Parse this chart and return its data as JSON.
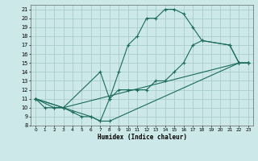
{
  "title": "",
  "xlabel": "Humidex (Indice chaleur)",
  "ylabel": "",
  "bg_color": "#cce8e8",
  "grid_color": "#aacccc",
  "line_color": "#1a6b5a",
  "xlim": [
    -0.5,
    23.5
  ],
  "ylim": [
    8,
    21.5
  ],
  "xticks": [
    0,
    1,
    2,
    3,
    4,
    5,
    6,
    7,
    8,
    9,
    10,
    11,
    12,
    13,
    14,
    15,
    16,
    17,
    18,
    19,
    20,
    21,
    22,
    23
  ],
  "yticks": [
    8,
    9,
    10,
    11,
    12,
    13,
    14,
    15,
    16,
    17,
    18,
    19,
    20,
    21
  ],
  "series": [
    {
      "x": [
        0,
        1,
        2,
        3,
        4,
        5,
        6,
        7,
        8,
        9,
        10,
        11,
        12,
        13,
        14,
        15,
        16,
        17,
        18,
        21,
        22,
        23
      ],
      "y": [
        11,
        10,
        10,
        10,
        9.5,
        9,
        9,
        8.5,
        11,
        14,
        17,
        18,
        20,
        20,
        21,
        21,
        20.5,
        19,
        17.5,
        17,
        15,
        15
      ]
    },
    {
      "x": [
        0,
        2,
        3,
        7,
        8,
        9,
        10,
        11,
        12,
        13,
        14,
        15,
        16,
        17,
        18,
        21,
        22,
        23
      ],
      "y": [
        11,
        10,
        10,
        14,
        11,
        12,
        12,
        12,
        12,
        13,
        13,
        14,
        15,
        17,
        17.5,
        17,
        15,
        15
      ]
    },
    {
      "x": [
        0,
        3,
        22,
        23
      ],
      "y": [
        11,
        10,
        15,
        15
      ]
    },
    {
      "x": [
        0,
        3,
        6,
        7,
        8,
        22,
        23
      ],
      "y": [
        11,
        10,
        9,
        8.5,
        8.5,
        15,
        15
      ]
    }
  ]
}
